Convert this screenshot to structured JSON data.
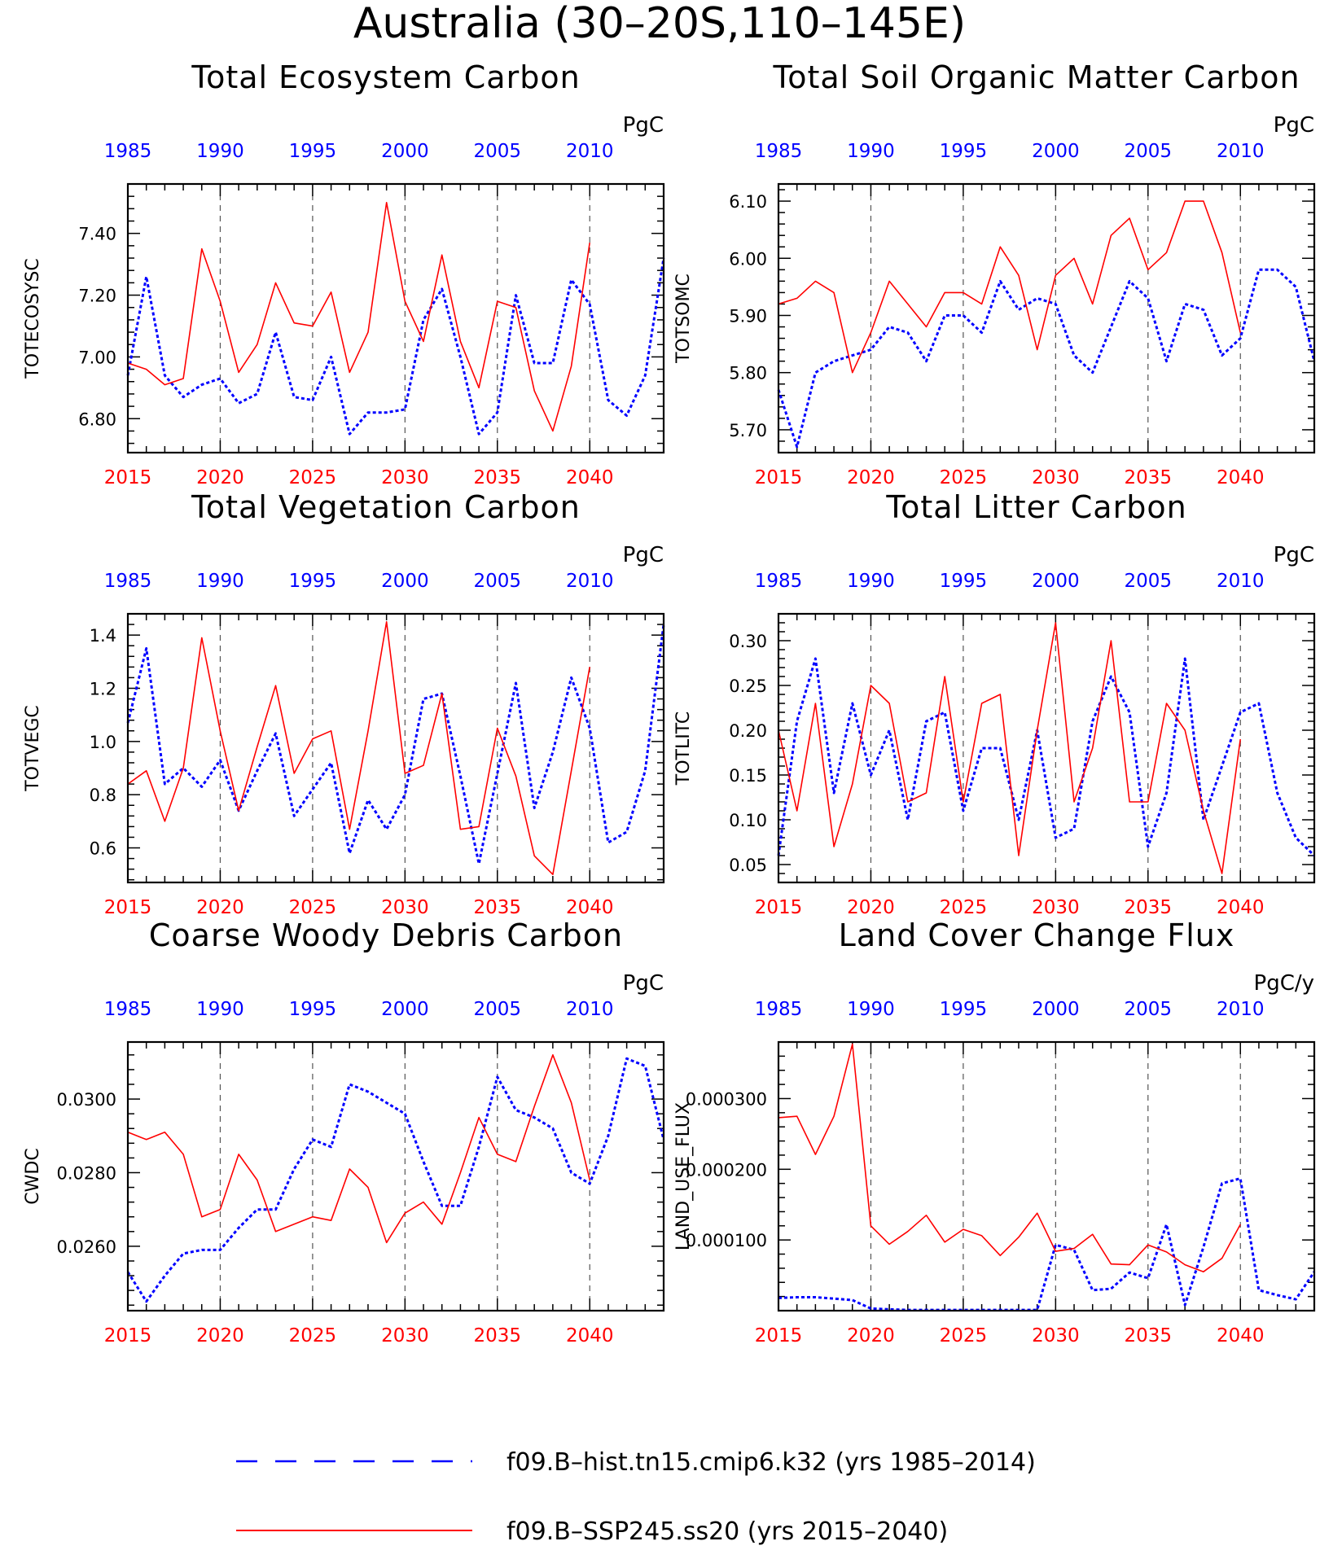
{
  "figure": {
    "title": "Australia (30–20S,110–145E)",
    "colors": {
      "hist": "#0000ff",
      "ssp": "#ff0000",
      "axis": "#000000",
      "grid": "#555555"
    }
  },
  "legend": [
    {
      "label": "f09.B–hist.tn15.cmip6.k32 (yrs 1985–2014)",
      "style": "dashed",
      "color": "#0000ff"
    },
    {
      "label": "f09.B–SSP245.ss20 (yrs 2015–2040)",
      "style": "solid",
      "color": "#ff0000"
    }
  ],
  "chart_data": [
    {
      "type": "line",
      "title": "Total Ecosystem Carbon",
      "ylabel": "TOTECOSYSC",
      "units": "PgC",
      "ylim": [
        6.69,
        7.56
      ],
      "yticks": [
        6.8,
        7.0,
        7.2,
        7.4
      ],
      "ytick_labels": [
        "6.80",
        "7.00",
        "7.20",
        "7.40"
      ],
      "x_bottom": {
        "range": [
          2015,
          2044
        ],
        "ticks": [
          2015,
          2020,
          2025,
          2030,
          2035,
          2040
        ]
      },
      "x_top": {
        "range": [
          1985,
          2014
        ],
        "ticks": [
          1985,
          1990,
          1995,
          2000,
          2005,
          2010
        ]
      },
      "series": [
        {
          "style": "dashed",
          "color": "#0000ff",
          "x": [
            1985,
            1986,
            1987,
            1988,
            1989,
            1990,
            1991,
            1992,
            1993,
            1994,
            1995,
            1996,
            1997,
            1998,
            1999,
            2000,
            2001,
            2002,
            2003,
            2004,
            2005,
            2006,
            2007,
            2008,
            2009,
            2010,
            2011,
            2012,
            2013,
            2014
          ],
          "values": [
            6.94,
            7.26,
            6.94,
            6.87,
            6.91,
            6.93,
            6.85,
            6.88,
            7.08,
            6.87,
            6.86,
            7.0,
            6.75,
            6.82,
            6.82,
            6.83,
            7.12,
            7.22,
            7.0,
            6.75,
            6.82,
            7.2,
            6.98,
            6.98,
            7.25,
            7.17,
            6.86,
            6.81,
            6.94,
            7.32
          ]
        },
        {
          "style": "solid",
          "color": "#ff0000",
          "x": [
            2015,
            2016,
            2017,
            2018,
            2019,
            2020,
            2021,
            2022,
            2023,
            2024,
            2025,
            2026,
            2027,
            2028,
            2029,
            2030,
            2031,
            2032,
            2033,
            2034,
            2035,
            2036,
            2037,
            2038,
            2039,
            2040
          ],
          "values": [
            6.98,
            6.96,
            6.91,
            6.93,
            7.35,
            7.18,
            6.95,
            7.04,
            7.24,
            7.11,
            7.1,
            7.21,
            6.95,
            7.08,
            7.5,
            7.18,
            7.05,
            7.33,
            7.05,
            6.9,
            7.18,
            7.16,
            6.89,
            6.76,
            6.97,
            7.37
          ]
        }
      ]
    },
    {
      "type": "line",
      "title": "Total Soil Organic Matter Carbon",
      "ylabel": "TOTSOMC",
      "units": "PgC",
      "ylim": [
        5.66,
        6.13
      ],
      "yticks": [
        5.7,
        5.8,
        5.9,
        6.0,
        6.1
      ],
      "ytick_labels": [
        "5.70",
        "5.80",
        "5.90",
        "6.00",
        "6.10"
      ],
      "x_bottom": {
        "range": [
          2015,
          2044
        ],
        "ticks": [
          2015,
          2020,
          2025,
          2030,
          2035,
          2040
        ]
      },
      "x_top": {
        "range": [
          1985,
          2014
        ],
        "ticks": [
          1985,
          1990,
          1995,
          2000,
          2005,
          2010
        ]
      },
      "series": [
        {
          "style": "dashed",
          "color": "#0000ff",
          "x": [
            1985,
            1986,
            1987,
            1988,
            1989,
            1990,
            1991,
            1992,
            1993,
            1994,
            1995,
            1996,
            1997,
            1998,
            1999,
            2000,
            2001,
            2002,
            2003,
            2004,
            2005,
            2006,
            2007,
            2008,
            2009,
            2010,
            2011,
            2012,
            2013,
            2014
          ],
          "values": [
            5.77,
            5.67,
            5.8,
            5.82,
            5.83,
            5.84,
            5.88,
            5.87,
            5.82,
            5.9,
            5.9,
            5.87,
            5.96,
            5.91,
            5.93,
            5.92,
            5.83,
            5.8,
            5.88,
            5.96,
            5.93,
            5.82,
            5.92,
            5.91,
            5.83,
            5.86,
            5.98,
            5.98,
            5.95,
            5.82
          ]
        },
        {
          "style": "solid",
          "color": "#ff0000",
          "x": [
            2015,
            2016,
            2017,
            2018,
            2019,
            2020,
            2021,
            2022,
            2023,
            2024,
            2025,
            2026,
            2027,
            2028,
            2029,
            2030,
            2031,
            2032,
            2033,
            2034,
            2035,
            2036,
            2037,
            2038,
            2039,
            2040
          ],
          "values": [
            5.92,
            5.93,
            5.96,
            5.94,
            5.8,
            5.87,
            5.96,
            5.92,
            5.88,
            5.94,
            5.94,
            5.92,
            6.02,
            5.97,
            5.84,
            5.97,
            6.0,
            5.92,
            6.04,
            6.07,
            5.98,
            6.01,
            6.1,
            6.1,
            6.01,
            5.87
          ]
        }
      ]
    },
    {
      "type": "line",
      "title": "Total Vegetation Carbon",
      "ylabel": "TOTVEGC",
      "units": "PgC",
      "ylim": [
        0.47,
        1.48
      ],
      "yticks": [
        0.6,
        0.8,
        1.0,
        1.2,
        1.4
      ],
      "ytick_labels": [
        "0.6",
        "0.8",
        "1.0",
        "1.2",
        "1.4"
      ],
      "x_bottom": {
        "range": [
          2015,
          2044
        ],
        "ticks": [
          2015,
          2020,
          2025,
          2030,
          2035,
          2040
        ]
      },
      "x_top": {
        "range": [
          1985,
          2014
        ],
        "ticks": [
          1985,
          1990,
          1995,
          2000,
          2005,
          2010
        ]
      },
      "series": [
        {
          "style": "dashed",
          "color": "#0000ff",
          "x": [
            1985,
            1986,
            1987,
            1988,
            1989,
            1990,
            1991,
            1992,
            1993,
            1994,
            1995,
            1996,
            1997,
            1998,
            1999,
            2000,
            2001,
            2002,
            2003,
            2004,
            2005,
            2006,
            2007,
            2008,
            2009,
            2010,
            2011,
            2012,
            2013,
            2014
          ],
          "values": [
            1.07,
            1.35,
            0.84,
            0.9,
            0.83,
            0.93,
            0.74,
            0.89,
            1.03,
            0.72,
            0.82,
            0.92,
            0.58,
            0.78,
            0.67,
            0.8,
            1.16,
            1.18,
            0.87,
            0.54,
            0.88,
            1.22,
            0.75,
            0.96,
            1.24,
            1.05,
            0.62,
            0.66,
            0.89,
            1.44
          ]
        },
        {
          "style": "solid",
          "color": "#ff0000",
          "x": [
            2015,
            2016,
            2017,
            2018,
            2019,
            2020,
            2021,
            2022,
            2023,
            2024,
            2025,
            2026,
            2027,
            2028,
            2029,
            2030,
            2031,
            2032,
            2033,
            2034,
            2035,
            2036,
            2037,
            2038,
            2039,
            2040
          ],
          "values": [
            0.84,
            0.89,
            0.7,
            0.9,
            1.39,
            1.04,
            0.74,
            0.98,
            1.21,
            0.88,
            1.01,
            1.04,
            0.67,
            1.04,
            1.45,
            0.88,
            0.91,
            1.18,
            0.67,
            0.68,
            1.05,
            0.87,
            0.57,
            0.5,
            0.89,
            1.28
          ]
        }
      ]
    },
    {
      "type": "line",
      "title": "Total Litter Carbon",
      "ylabel": "TOTLITC",
      "units": "PgC",
      "ylim": [
        0.03,
        0.33
      ],
      "yticks": [
        0.05,
        0.1,
        0.15,
        0.2,
        0.25,
        0.3
      ],
      "ytick_labels": [
        "0.05",
        "0.10",
        "0.15",
        "0.20",
        "0.25",
        "0.30"
      ],
      "x_bottom": {
        "range": [
          2015,
          2044
        ],
        "ticks": [
          2015,
          2020,
          2025,
          2030,
          2035,
          2040
        ]
      },
      "x_top": {
        "range": [
          1985,
          2014
        ],
        "ticks": [
          1985,
          1990,
          1995,
          2000,
          2005,
          2010
        ]
      },
      "series": [
        {
          "style": "dashed",
          "color": "#0000ff",
          "x": [
            1985,
            1986,
            1987,
            1988,
            1989,
            1990,
            1991,
            1992,
            1993,
            1994,
            1995,
            1996,
            1997,
            1998,
            1999,
            2000,
            2001,
            2002,
            2003,
            2004,
            2005,
            2006,
            2007,
            2008,
            2009,
            2010,
            2011,
            2012,
            2013,
            2014
          ],
          "values": [
            0.06,
            0.21,
            0.28,
            0.13,
            0.23,
            0.15,
            0.2,
            0.1,
            0.21,
            0.22,
            0.11,
            0.18,
            0.18,
            0.1,
            0.2,
            0.08,
            0.09,
            0.21,
            0.26,
            0.22,
            0.07,
            0.13,
            0.28,
            0.1,
            0.16,
            0.22,
            0.23,
            0.13,
            0.08,
            0.06
          ]
        },
        {
          "style": "solid",
          "color": "#ff0000",
          "x": [
            2015,
            2016,
            2017,
            2018,
            2019,
            2020,
            2021,
            2022,
            2023,
            2024,
            2025,
            2026,
            2027,
            2028,
            2029,
            2030,
            2031,
            2032,
            2033,
            2034,
            2035,
            2036,
            2037,
            2038,
            2039,
            2040
          ],
          "values": [
            0.2,
            0.11,
            0.23,
            0.07,
            0.14,
            0.25,
            0.23,
            0.12,
            0.13,
            0.26,
            0.12,
            0.23,
            0.24,
            0.06,
            0.2,
            0.32,
            0.12,
            0.18,
            0.3,
            0.12,
            0.12,
            0.23,
            0.2,
            0.11,
            0.04,
            0.19
          ]
        }
      ]
    },
    {
      "type": "line",
      "title": "Coarse Woody Debris Carbon",
      "ylabel": "CWDC",
      "units": "PgC",
      "ylim": [
        0.02425,
        0.03155
      ],
      "yticks": [
        0.026,
        0.028,
        0.03
      ],
      "ytick_labels": [
        "0.0260",
        "0.0280",
        "0.0300"
      ],
      "x_bottom": {
        "range": [
          2015,
          2044
        ],
        "ticks": [
          2015,
          2020,
          2025,
          2030,
          2035,
          2040
        ]
      },
      "x_top": {
        "range": [
          1985,
          2014
        ],
        "ticks": [
          1985,
          1990,
          1995,
          2000,
          2005,
          2010
        ]
      },
      "series": [
        {
          "style": "dashed",
          "color": "#0000ff",
          "x": [
            1985,
            1986,
            1987,
            1988,
            1989,
            1990,
            1991,
            1992,
            1993,
            1994,
            1995,
            1996,
            1997,
            1998,
            1999,
            2000,
            2001,
            2002,
            2003,
            2004,
            2005,
            2006,
            2007,
            2008,
            2009,
            2010,
            2011,
            2012,
            2013,
            2014
          ],
          "values": [
            0.0253,
            0.0245,
            0.0252,
            0.0258,
            0.0259,
            0.0259,
            0.0265,
            0.027,
            0.027,
            0.0281,
            0.0289,
            0.0287,
            0.0304,
            0.0302,
            0.0299,
            0.0296,
            0.0283,
            0.0271,
            0.0271,
            0.0287,
            0.0306,
            0.0297,
            0.0295,
            0.0292,
            0.028,
            0.0277,
            0.029,
            0.0311,
            0.0309,
            0.0289
          ]
        },
        {
          "style": "solid",
          "color": "#ff0000",
          "x": [
            2015,
            2016,
            2017,
            2018,
            2019,
            2020,
            2021,
            2022,
            2023,
            2024,
            2025,
            2026,
            2027,
            2028,
            2029,
            2030,
            2031,
            2032,
            2033,
            2034,
            2035,
            2036,
            2037,
            2038,
            2039,
            2040
          ],
          "values": [
            0.0291,
            0.0289,
            0.0291,
            0.0285,
            0.0268,
            0.027,
            0.0285,
            0.0278,
            0.0264,
            0.0266,
            0.0268,
            0.0267,
            0.0281,
            0.0276,
            0.0261,
            0.0269,
            0.0272,
            0.0266,
            0.028,
            0.0295,
            0.0285,
            0.0283,
            0.0298,
            0.0312,
            0.0299,
            0.0278
          ]
        }
      ]
    },
    {
      "type": "line",
      "title": "Land Cover Change Flux",
      "ylabel": "LAND_USE_FLUX",
      "units": "PgC/y",
      "ylim": [
        0.0,
        0.00038
      ],
      "yticks": [
        0.0001,
        0.0002,
        0.0003
      ],
      "ytick_labels": [
        "0.000100",
        "0.000200",
        "0.000300"
      ],
      "x_bottom": {
        "range": [
          2015,
          2044
        ],
        "ticks": [
          2015,
          2020,
          2025,
          2030,
          2035,
          2040
        ]
      },
      "x_top": {
        "range": [
          1985,
          2014
        ],
        "ticks": [
          1985,
          1990,
          1995,
          2000,
          2005,
          2010
        ]
      },
      "series": [
        {
          "style": "dashed",
          "color": "#0000ff",
          "x": [
            1985,
            1986,
            1987,
            1988,
            1989,
            1990,
            1991,
            1992,
            1993,
            1994,
            1995,
            1996,
            1997,
            1998,
            1999,
            2000,
            2001,
            2002,
            2003,
            2004,
            2005,
            2006,
            2007,
            2008,
            2009,
            2010,
            2011,
            2012,
            2013,
            2014
          ],
          "values": [
            1.8e-05,
            1.9e-05,
            1.9e-05,
            1.7e-05,
            1.5e-05,
            3e-06,
            2e-06,
            1e-06,
            1e-06,
            1e-06,
            1e-06,
            1e-06,
            1e-06,
            1e-06,
            1e-06,
            9.3e-05,
            8.6e-05,
            2.9e-05,
            3.1e-05,
            5.4e-05,
            4.6e-05,
            0.000122,
            8e-06,
            9e-05,
            0.00018,
            0.000187,
            2.9e-05,
            2.2e-05,
            1.6e-05,
            5.5e-05
          ]
        },
        {
          "style": "solid",
          "color": "#ff0000",
          "x": [
            2015,
            2016,
            2017,
            2018,
            2019,
            2020,
            2021,
            2022,
            2023,
            2024,
            2025,
            2026,
            2027,
            2028,
            2029,
            2030,
            2031,
            2032,
            2033,
            2034,
            2035,
            2036,
            2037,
            2038,
            2039,
            2040
          ],
          "values": [
            0.000273,
            0.000275,
            0.000221,
            0.000275,
            0.000377,
            0.00012,
            9.4e-05,
            0.000112,
            0.000135,
            9.7e-05,
            0.000115,
            0.000106,
            7.8e-05,
            0.000104,
            0.000138,
            8.4e-05,
            8.8e-05,
            0.000108,
            6.6e-05,
            6.5e-05,
            9.3e-05,
            8.3e-05,
            6.5e-05,
            5.5e-05,
            7.4e-05,
            0.000122
          ]
        }
      ]
    }
  ]
}
